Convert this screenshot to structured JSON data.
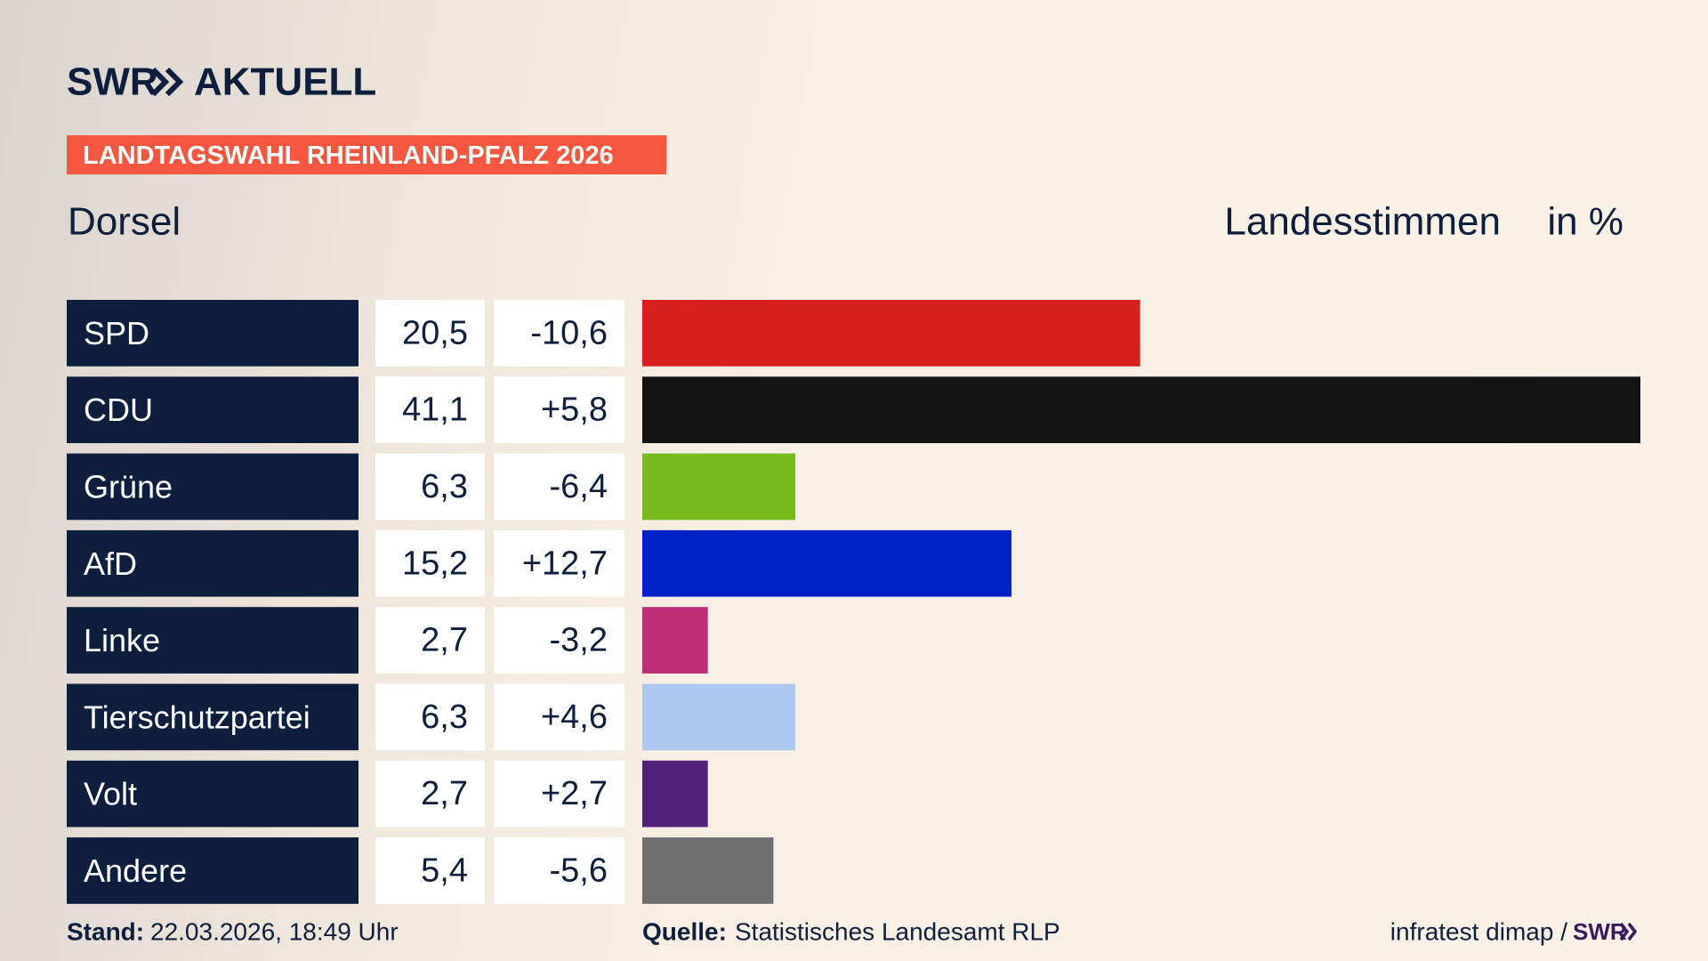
{
  "chart_data": {
    "type": "bar",
    "logo": "SWR",
    "brand": "AKTUELL",
    "badge": "LANDTAGSWAHL RHEINLAND-PFALZ 2026",
    "title": "Dorsel",
    "subtitle": "Landesstimmen",
    "unit": "in %",
    "categories": [
      "SPD",
      "CDU",
      "Grüne",
      "AfD",
      "Linke",
      "Tierschutzpartei",
      "Volt",
      "Andere"
    ],
    "values": [
      20.5,
      41.1,
      6.3,
      15.2,
      2.7,
      6.3,
      2.7,
      5.4
    ],
    "value_labels": [
      "20,5",
      "41,1",
      "6,3",
      "15,2",
      "2,7",
      "6,3",
      "2,7",
      "5,4"
    ],
    "changes": [
      -10.6,
      5.8,
      -6.4,
      12.7,
      -3.2,
      4.6,
      2.7,
      -5.6
    ],
    "change_labels": [
      "-10,6",
      "+5,8",
      "-6,4",
      "+12,7",
      "-3,2",
      "+4,6",
      "+2,7",
      "-5,6"
    ],
    "colors": [
      "#d61f1f",
      "#121212",
      "#78bb1d",
      "#0021c8",
      "#be2e76",
      "#adc9ef",
      "#51217a",
      "#6f6f70"
    ],
    "stand_label": "Stand:",
    "stand": "22.03.2026, 18:49 Uhr",
    "source_label": "Quelle:",
    "source": "Statistisches Landesamt RLP",
    "credit": "infratest dimap /",
    "credit_logo": "SWR"
  }
}
